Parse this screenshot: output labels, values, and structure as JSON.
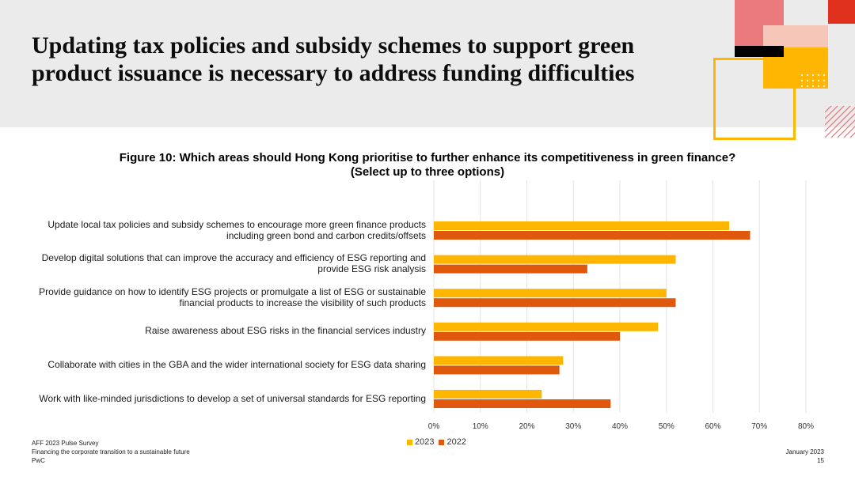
{
  "slide": {
    "title_bold": "Updating tax policies and subsidy schemes",
    "title_rest": " to support green product issuance is necessary to address funding difficulties"
  },
  "chart_data": {
    "type": "bar",
    "orientation": "horizontal",
    "title_line1": "Figure 10: Which areas should Hong Kong prioritise to further enhance its competitiveness in green finance?",
    "title_line2": "(Select up to three options)",
    "categories": [
      [
        "Update local tax policies and subsidy schemes to encourage more green finance products",
        "including green bond and carbon credits/offsets"
      ],
      [
        "Develop digital solutions that can improve the accuracy and efficiency of ESG reporting and",
        "provide ESG risk analysis"
      ],
      [
        "Provide guidance on how to identify ESG projects or promulgate a list of ESG or sustainable",
        "financial products to increase the visibility of such products"
      ],
      [
        "Raise awareness about ESG risks in the financial services industry"
      ],
      [
        "Collaborate with cities in the GBA and the wider international society for ESG data sharing"
      ],
      [
        "Work with like-minded jurisdictions to develop a set of universal standards for ESG reporting"
      ]
    ],
    "series": [
      {
        "name": "2023",
        "color": "#FFB600",
        "values": [
          63.5,
          52,
          50,
          48.2,
          27.8,
          23.2
        ]
      },
      {
        "name": "2022",
        "color": "#E0580C",
        "values": [
          68,
          33,
          52,
          40,
          27,
          38
        ]
      }
    ],
    "xlim": [
      0,
      80
    ],
    "xticks": [
      "0%",
      "10%",
      "20%",
      "30%",
      "40%",
      "50%",
      "60%",
      "70%",
      "80%"
    ],
    "grid": true,
    "legend_position": "bottom-center"
  },
  "footer": {
    "left_line1": "AFF 2023 Pulse Survey",
    "left_line2": "Financing the corporate transition to a sustainable future",
    "left_line3": "PwC",
    "date": "January 2023",
    "page": "15"
  },
  "colors": {
    "band": "#EBEBEB",
    "pink": "#EB7A7D",
    "red": "#E0301E",
    "orange": "#FFB600",
    "dark": "#000000"
  }
}
